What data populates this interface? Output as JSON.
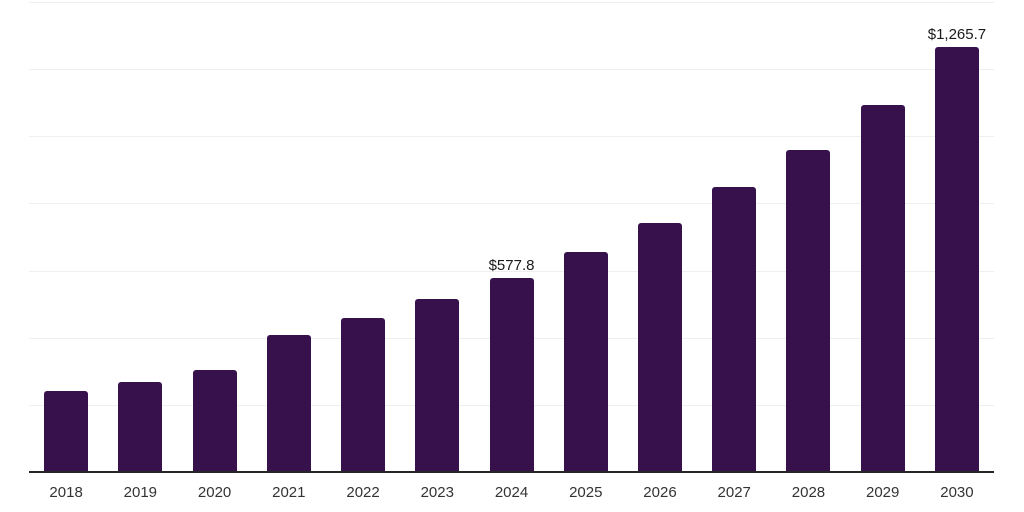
{
  "chart_data": {
    "type": "bar",
    "title": "",
    "xlabel": "",
    "ylabel": "",
    "categories": [
      "2018",
      "2019",
      "2020",
      "2021",
      "2022",
      "2023",
      "2024",
      "2025",
      "2026",
      "2027",
      "2028",
      "2029",
      "2030"
    ],
    "values": [
      240.0,
      268.5,
      304.0,
      408.5,
      457.5,
      514.0,
      577.8,
      654.5,
      741.0,
      848.0,
      960.5,
      1094.0,
      1265.7
    ],
    "data_labels": {
      "2024": "$577.8",
      "2030": "$1,265.7"
    },
    "value_prefix": "$",
    "ylim": [
      0,
      1400
    ],
    "gridline_step": 200,
    "grid": true,
    "legend_position": "none",
    "bar_color": "#36114B"
  },
  "colors": {
    "background": "#ffffff",
    "bar": "#36114B",
    "axis_line": "#262626",
    "gridline": "#efefef",
    "tick_label": "#333333",
    "data_label": "#1a1a1a"
  }
}
